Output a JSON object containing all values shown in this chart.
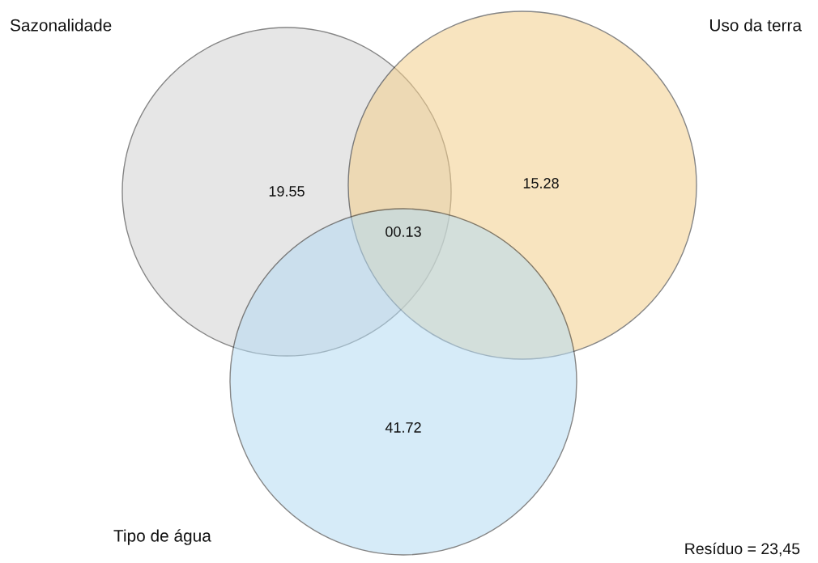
{
  "chart_data": {
    "type": "other",
    "categories": [
      null,
      null,
      null,
      null
    ],
    "values": [
      19.55,
      15.28,
      0.13,
      41.72
    ],
    "value_labels": [
      "19.55",
      "15.28",
      "00.13",
      "41.72"
    ],
    "annotations": [
      "Sazonalidade",
      "Uso da terra",
      "Tipo de água",
      "Resíduo = 23,45"
    ]
  }
}
